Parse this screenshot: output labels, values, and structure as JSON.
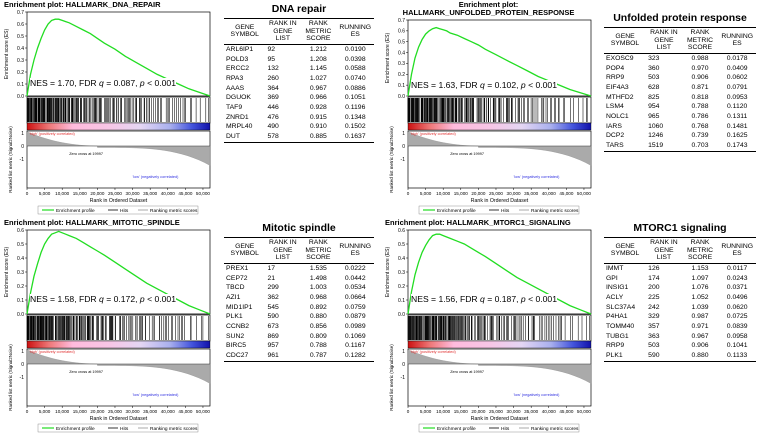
{
  "chart_data": [
    {
      "type": "line",
      "title": "Enrichment plot: HALLMARK_DNA_REPAIR",
      "ylabel": "Enrichment score (ES)",
      "ylabel2": "Ranked list metric (Signal2Noise)",
      "xlabel": "Rank in Ordered Dataset",
      "ylim": [
        0.0,
        0.7
      ],
      "yticks": [
        "0.0",
        "0.1",
        "0.2",
        "0.3",
        "0.4",
        "0.5",
        "0.6",
        "0.7"
      ],
      "xticks": [
        "0",
        "5,000",
        "10,000",
        "15,000",
        "20,000",
        "25,000",
        "30,000",
        "35,000",
        "40,000",
        "45,000",
        "50,000"
      ],
      "xlim": [
        0,
        52000
      ],
      "x": [
        0,
        1000,
        2000,
        3000,
        4000,
        5000,
        6000,
        7000,
        8000,
        9000,
        10000,
        11000,
        12000,
        14000,
        16000,
        18000,
        20000,
        22000,
        25000,
        28000,
        31000,
        34000,
        37000,
        40000,
        43000,
        46000,
        49000,
        52000
      ],
      "series": [
        {
          "name": "Enrichment profile",
          "values": [
            0.0,
            0.18,
            0.3,
            0.4,
            0.48,
            0.55,
            0.6,
            0.63,
            0.64,
            0.64,
            0.63,
            0.62,
            0.61,
            0.58,
            0.55,
            0.52,
            0.48,
            0.44,
            0.39,
            0.33,
            0.28,
            0.23,
            0.18,
            0.14,
            0.1,
            0.06,
            0.03,
            0.0
          ]
        }
      ],
      "hits_density": [
        12,
        12,
        11,
        11,
        10,
        10,
        9,
        9,
        8,
        8,
        7,
        7,
        6,
        6,
        6,
        5,
        5,
        5,
        5,
        4,
        4,
        4,
        4,
        4,
        3,
        3,
        3,
        3,
        3,
        3,
        3,
        3,
        2,
        2,
        2,
        2,
        2,
        2,
        2,
        2,
        2,
        2,
        1,
        1,
        1,
        1,
        1,
        1
      ],
      "metric_ticks": [
        "1",
        "0",
        "-1"
      ],
      "pos_label": "'high' (positively correlated)",
      "neg_label": "'low' (negatively correlated)",
      "zero_cross": "Zero cross at 19997",
      "legend": [
        "Enrichment profile",
        "Hits",
        "Ranking metric scores"
      ],
      "nes": "NES = 1.70, FDR",
      "fdr_q": "q",
      "fdr_val": "= 0.087,",
      "p_label": "p",
      "p_val": "< 0.001"
    },
    {
      "type": "line",
      "title": "Enrichment plot: HALLMARK_UNFOLDED_PROTEIN_RESPONSE",
      "title_line1": "Enrichment plot:",
      "title_line2": "HALLMARK_UNFOLDED_PROTEIN_RESPONSE",
      "ylabel": "Enrichment score (ES)",
      "ylabel2": "Ranked list metric (Signal2Noise)",
      "xlabel": "Rank in Ordered Dataset",
      "ylim": [
        0.0,
        0.7
      ],
      "yticks": [
        "0.0",
        "0.1",
        "0.2",
        "0.3",
        "0.4",
        "0.5",
        "0.6",
        "0.7"
      ],
      "xticks": [
        "0",
        "5,000",
        "10,000",
        "15,000",
        "20,000",
        "25,000",
        "30,000",
        "35,000",
        "40,000",
        "45,000",
        "50,000"
      ],
      "xlim": [
        0,
        52000
      ],
      "x": [
        0,
        1000,
        2000,
        3000,
        4000,
        5000,
        6000,
        7000,
        8000,
        9000,
        10000,
        11000,
        12000,
        14000,
        16000,
        18000,
        20000,
        22000,
        25000,
        28000,
        31000,
        34000,
        37000,
        40000,
        43000,
        46000,
        49000,
        52000
      ],
      "series": [
        {
          "name": "Enrichment profile",
          "values": [
            0.0,
            0.2,
            0.35,
            0.45,
            0.52,
            0.57,
            0.6,
            0.62,
            0.63,
            0.62,
            0.61,
            0.6,
            0.58,
            0.56,
            0.53,
            0.5,
            0.47,
            0.43,
            0.38,
            0.33,
            0.28,
            0.23,
            0.18,
            0.14,
            0.1,
            0.06,
            0.03,
            0.0
          ]
        }
      ],
      "hits_density": [
        11,
        11,
        11,
        10,
        10,
        10,
        9,
        9,
        8,
        8,
        8,
        7,
        7,
        6,
        6,
        5,
        5,
        5,
        4,
        4,
        4,
        4,
        4,
        3,
        3,
        3,
        3,
        3,
        3,
        3,
        2,
        2,
        2,
        2,
        2,
        2,
        2,
        2,
        2,
        2,
        2,
        1,
        1,
        1,
        1,
        1,
        1,
        1
      ],
      "metric_ticks": [
        "1",
        "0",
        "-1"
      ],
      "pos_label": "'high' (positively correlated)",
      "neg_label": "'low' (negatively correlated)",
      "zero_cross": "Zero cross at 19997",
      "legend": [
        "Enrichment profile",
        "Hits",
        "Ranking metric scores"
      ],
      "nes": "NES = 1.63, FDR",
      "fdr_q": "q",
      "fdr_val": "= 0.102,",
      "p_label": "p",
      "p_val": "< 0.001"
    },
    {
      "type": "line",
      "title": "Enrichment plot: HALLMARK_MITOTIC_SPINDLE",
      "ylabel": "Enrichment score (ES)",
      "ylabel2": "Ranked list metric (Signal2Noise)",
      "xlabel": "Rank in Ordered Dataset",
      "ylim": [
        0.0,
        0.6
      ],
      "yticks": [
        "0.0",
        "0.1",
        "0.2",
        "0.3",
        "0.4",
        "0.5",
        "0.6"
      ],
      "xticks": [
        "0",
        "5,000",
        "10,000",
        "15,000",
        "20,000",
        "25,000",
        "30,000",
        "35,000",
        "40,000",
        "45,000",
        "50,000"
      ],
      "xlim": [
        0,
        52000
      ],
      "x": [
        0,
        1000,
        2000,
        3000,
        4000,
        5000,
        6000,
        7000,
        8000,
        9000,
        10000,
        11000,
        12000,
        14000,
        16000,
        18000,
        20000,
        22000,
        25000,
        28000,
        31000,
        34000,
        37000,
        40000,
        43000,
        46000,
        49000,
        52000
      ],
      "series": [
        {
          "name": "Enrichment profile",
          "values": [
            0.0,
            0.15,
            0.27,
            0.36,
            0.44,
            0.5,
            0.54,
            0.57,
            0.58,
            0.59,
            0.58,
            0.57,
            0.56,
            0.54,
            0.51,
            0.48,
            0.45,
            0.42,
            0.37,
            0.32,
            0.27,
            0.22,
            0.18,
            0.14,
            0.1,
            0.06,
            0.03,
            0.0
          ]
        }
      ],
      "hits_density": [
        12,
        12,
        11,
        11,
        11,
        10,
        10,
        9,
        9,
        8,
        8,
        7,
        7,
        6,
        6,
        6,
        5,
        5,
        5,
        4,
        4,
        4,
        4,
        3,
        3,
        3,
        3,
        3,
        3,
        3,
        3,
        2,
        2,
        2,
        2,
        2,
        2,
        2,
        2,
        2,
        2,
        1,
        1,
        1,
        1,
        1,
        1,
        1
      ],
      "metric_ticks": [
        "1",
        "0",
        "-1"
      ],
      "pos_label": "'high' (positively correlated)",
      "neg_label": "'low' (negatively correlated)",
      "zero_cross": "Zero cross at 19997",
      "legend": [
        "Enrichment profile",
        "Hits",
        "Ranking metric scores"
      ],
      "nes": "NES = 1.58, FDR",
      "fdr_q": "q",
      "fdr_val": "= 0.172,",
      "p_label": "p",
      "p_val": "< 0.001"
    },
    {
      "type": "line",
      "title": "Enrichment plot: HALLMARK_MTORC1_SIGNALING",
      "ylabel": "Enrichment score (ES)",
      "ylabel2": "Ranked list metric (Signal2Noise)",
      "xlabel": "Rank in Ordered Dataset",
      "ylim": [
        0.0,
        0.6
      ],
      "yticks": [
        "0.0",
        "0.1",
        "0.2",
        "0.3",
        "0.4",
        "0.5",
        "0.6"
      ],
      "xticks": [
        "0",
        "5,000",
        "10,000",
        "15,000",
        "20,000",
        "25,000",
        "30,000",
        "35,000",
        "40,000",
        "45,000",
        "50,000"
      ],
      "xlim": [
        0,
        52000
      ],
      "x": [
        0,
        1000,
        2000,
        3000,
        4000,
        5000,
        6000,
        7000,
        8000,
        9000,
        10000,
        11000,
        12000,
        14000,
        16000,
        18000,
        20000,
        22000,
        25000,
        28000,
        31000,
        34000,
        37000,
        40000,
        43000,
        46000,
        49000,
        52000
      ],
      "series": [
        {
          "name": "Enrichment profile",
          "values": [
            0.0,
            0.16,
            0.28,
            0.37,
            0.44,
            0.49,
            0.53,
            0.56,
            0.57,
            0.57,
            0.56,
            0.55,
            0.54,
            0.52,
            0.5,
            0.47,
            0.44,
            0.41,
            0.36,
            0.31,
            0.26,
            0.22,
            0.18,
            0.14,
            0.1,
            0.06,
            0.03,
            0.0
          ]
        }
      ],
      "hits_density": [
        12,
        12,
        11,
        11,
        10,
        10,
        10,
        9,
        9,
        8,
        8,
        7,
        7,
        6,
        6,
        5,
        5,
        5,
        5,
        4,
        4,
        4,
        4,
        4,
        3,
        3,
        3,
        3,
        3,
        3,
        2,
        2,
        2,
        2,
        2,
        2,
        2,
        2,
        2,
        2,
        2,
        1,
        1,
        1,
        1,
        1,
        1,
        1
      ],
      "metric_ticks": [
        "1",
        "0",
        "-1"
      ],
      "pos_label": "'high' (positively correlated)",
      "neg_label": "'low' (negatively correlated)",
      "zero_cross": "Zero cross at 19997",
      "legend": [
        "Enrichment profile",
        "Hits",
        "Ranking metric scores"
      ],
      "nes": "NES = 1.56, FDR",
      "fdr_q": "q",
      "fdr_val": "= 0.187,",
      "p_label": "p",
      "p_val": "< 0.001"
    },
    {
      "type": "table",
      "title": "DNA repair",
      "headers": [
        "GENE SYMBOL",
        "RANK IN GENE LIST",
        "RANK METRIC SCORE",
        "RUNNING ES"
      ],
      "rows": [
        [
          "ARL6IP1",
          "92",
          "1.212",
          "0.0190"
        ],
        [
          "POLD3",
          "95",
          "1.208",
          "0.0398"
        ],
        [
          "ERCC2",
          "132",
          "1.145",
          "0.0588"
        ],
        [
          "RPA3",
          "260",
          "1.027",
          "0.0740"
        ],
        [
          "AAAS",
          "364",
          "0.967",
          "0.0886"
        ],
        [
          "DGUOK",
          "369",
          "0.966",
          "0.1051"
        ],
        [
          "TAF9",
          "446",
          "0.928",
          "0.1196"
        ],
        [
          "ZNRD1",
          "476",
          "0.915",
          "0.1348"
        ],
        [
          "MRPL40",
          "490",
          "0.910",
          "0.1502"
        ],
        [
          "DUT",
          "578",
          "0.885",
          "0.1637"
        ]
      ]
    },
    {
      "type": "table",
      "title": "Unfolded protein response",
      "headers": [
        "GENE SYMBOL",
        "RANK IN GENE LIST",
        "RANK METRIC SCORE",
        "RUNNING ES"
      ],
      "rows": [
        [
          "EXOSC9",
          "323",
          "0.988",
          "0.0178"
        ],
        [
          "POP4",
          "360",
          "0.970",
          "0.0409"
        ],
        [
          "RRP9",
          "503",
          "0.906",
          "0.0602"
        ],
        [
          "EIF4A3",
          "628",
          "0.871",
          "0.0791"
        ],
        [
          "MTHFD2",
          "825",
          "0.818",
          "0.0953"
        ],
        [
          "LSM4",
          "954",
          "0.788",
          "0.1120"
        ],
        [
          "NOLC1",
          "965",
          "0.786",
          "0.1311"
        ],
        [
          "IARS",
          "1060",
          "0.768",
          "0.1481"
        ],
        [
          "DCP2",
          "1246",
          "0.739",
          "0.1625"
        ],
        [
          "TARS",
          "1519",
          "0.703",
          "0.1743"
        ]
      ]
    },
    {
      "type": "table",
      "title": "Mitotic spindle",
      "headers": [
        "GENE SYMBOL",
        "RANK IN GENE LIST",
        "RANK METRIC SCORE",
        "RUNNING ES"
      ],
      "rows": [
        [
          "PREX1",
          "17",
          "1.535",
          "0.0222"
        ],
        [
          "CEP72",
          "21",
          "1.498",
          "0.0442"
        ],
        [
          "TBCD",
          "299",
          "1.003",
          "0.0534"
        ],
        [
          "AZI1",
          "362",
          "0.968",
          "0.0664"
        ],
        [
          "MID1IP1",
          "545",
          "0.892",
          "0.0759"
        ],
        [
          "PLK1",
          "590",
          "0.880",
          "0.0879"
        ],
        [
          "CCNB2",
          "673",
          "0.856",
          "0.0989"
        ],
        [
          "SUN2",
          "869",
          "0.809",
          "0.1069"
        ],
        [
          "BIRC5",
          "957",
          "0.788",
          "0.1167"
        ],
        [
          "CDC27",
          "961",
          "0.787",
          "0.1282"
        ]
      ]
    },
    {
      "type": "table",
      "title": "MTORC1 signaling",
      "headers": [
        "GENE SYMBOL",
        "RANK IN GENE LIST",
        "RANK METRIC SCORE",
        "RUNNING ES"
      ],
      "rows": [
        [
          "IMMT",
          "126",
          "1.153",
          "0.0117"
        ],
        [
          "GPI",
          "174",
          "1.097",
          "0.0243"
        ],
        [
          "INSIG1",
          "200",
          "1.076",
          "0.0371"
        ],
        [
          "ACLY",
          "225",
          "1.052",
          "0.0496"
        ],
        [
          "SLC37A4",
          "242",
          "1.039",
          "0.0620"
        ],
        [
          "P4HA1",
          "329",
          "0.987",
          "0.0725"
        ],
        [
          "TOMM40",
          "357",
          "0.971",
          "0.0839"
        ],
        [
          "TUBG1",
          "363",
          "0.967",
          "0.0958"
        ],
        [
          "RRP9",
          "503",
          "0.906",
          "0.1041"
        ],
        [
          "PLK1",
          "590",
          "0.880",
          "0.1133"
        ]
      ]
    }
  ],
  "colors": {
    "es_line": "#22dd22",
    "hits": "#000000",
    "metric_fill": "#aaaaaa",
    "pos_red": "#e03030",
    "neg_blue": "#3030e0",
    "axis": "#000000"
  }
}
